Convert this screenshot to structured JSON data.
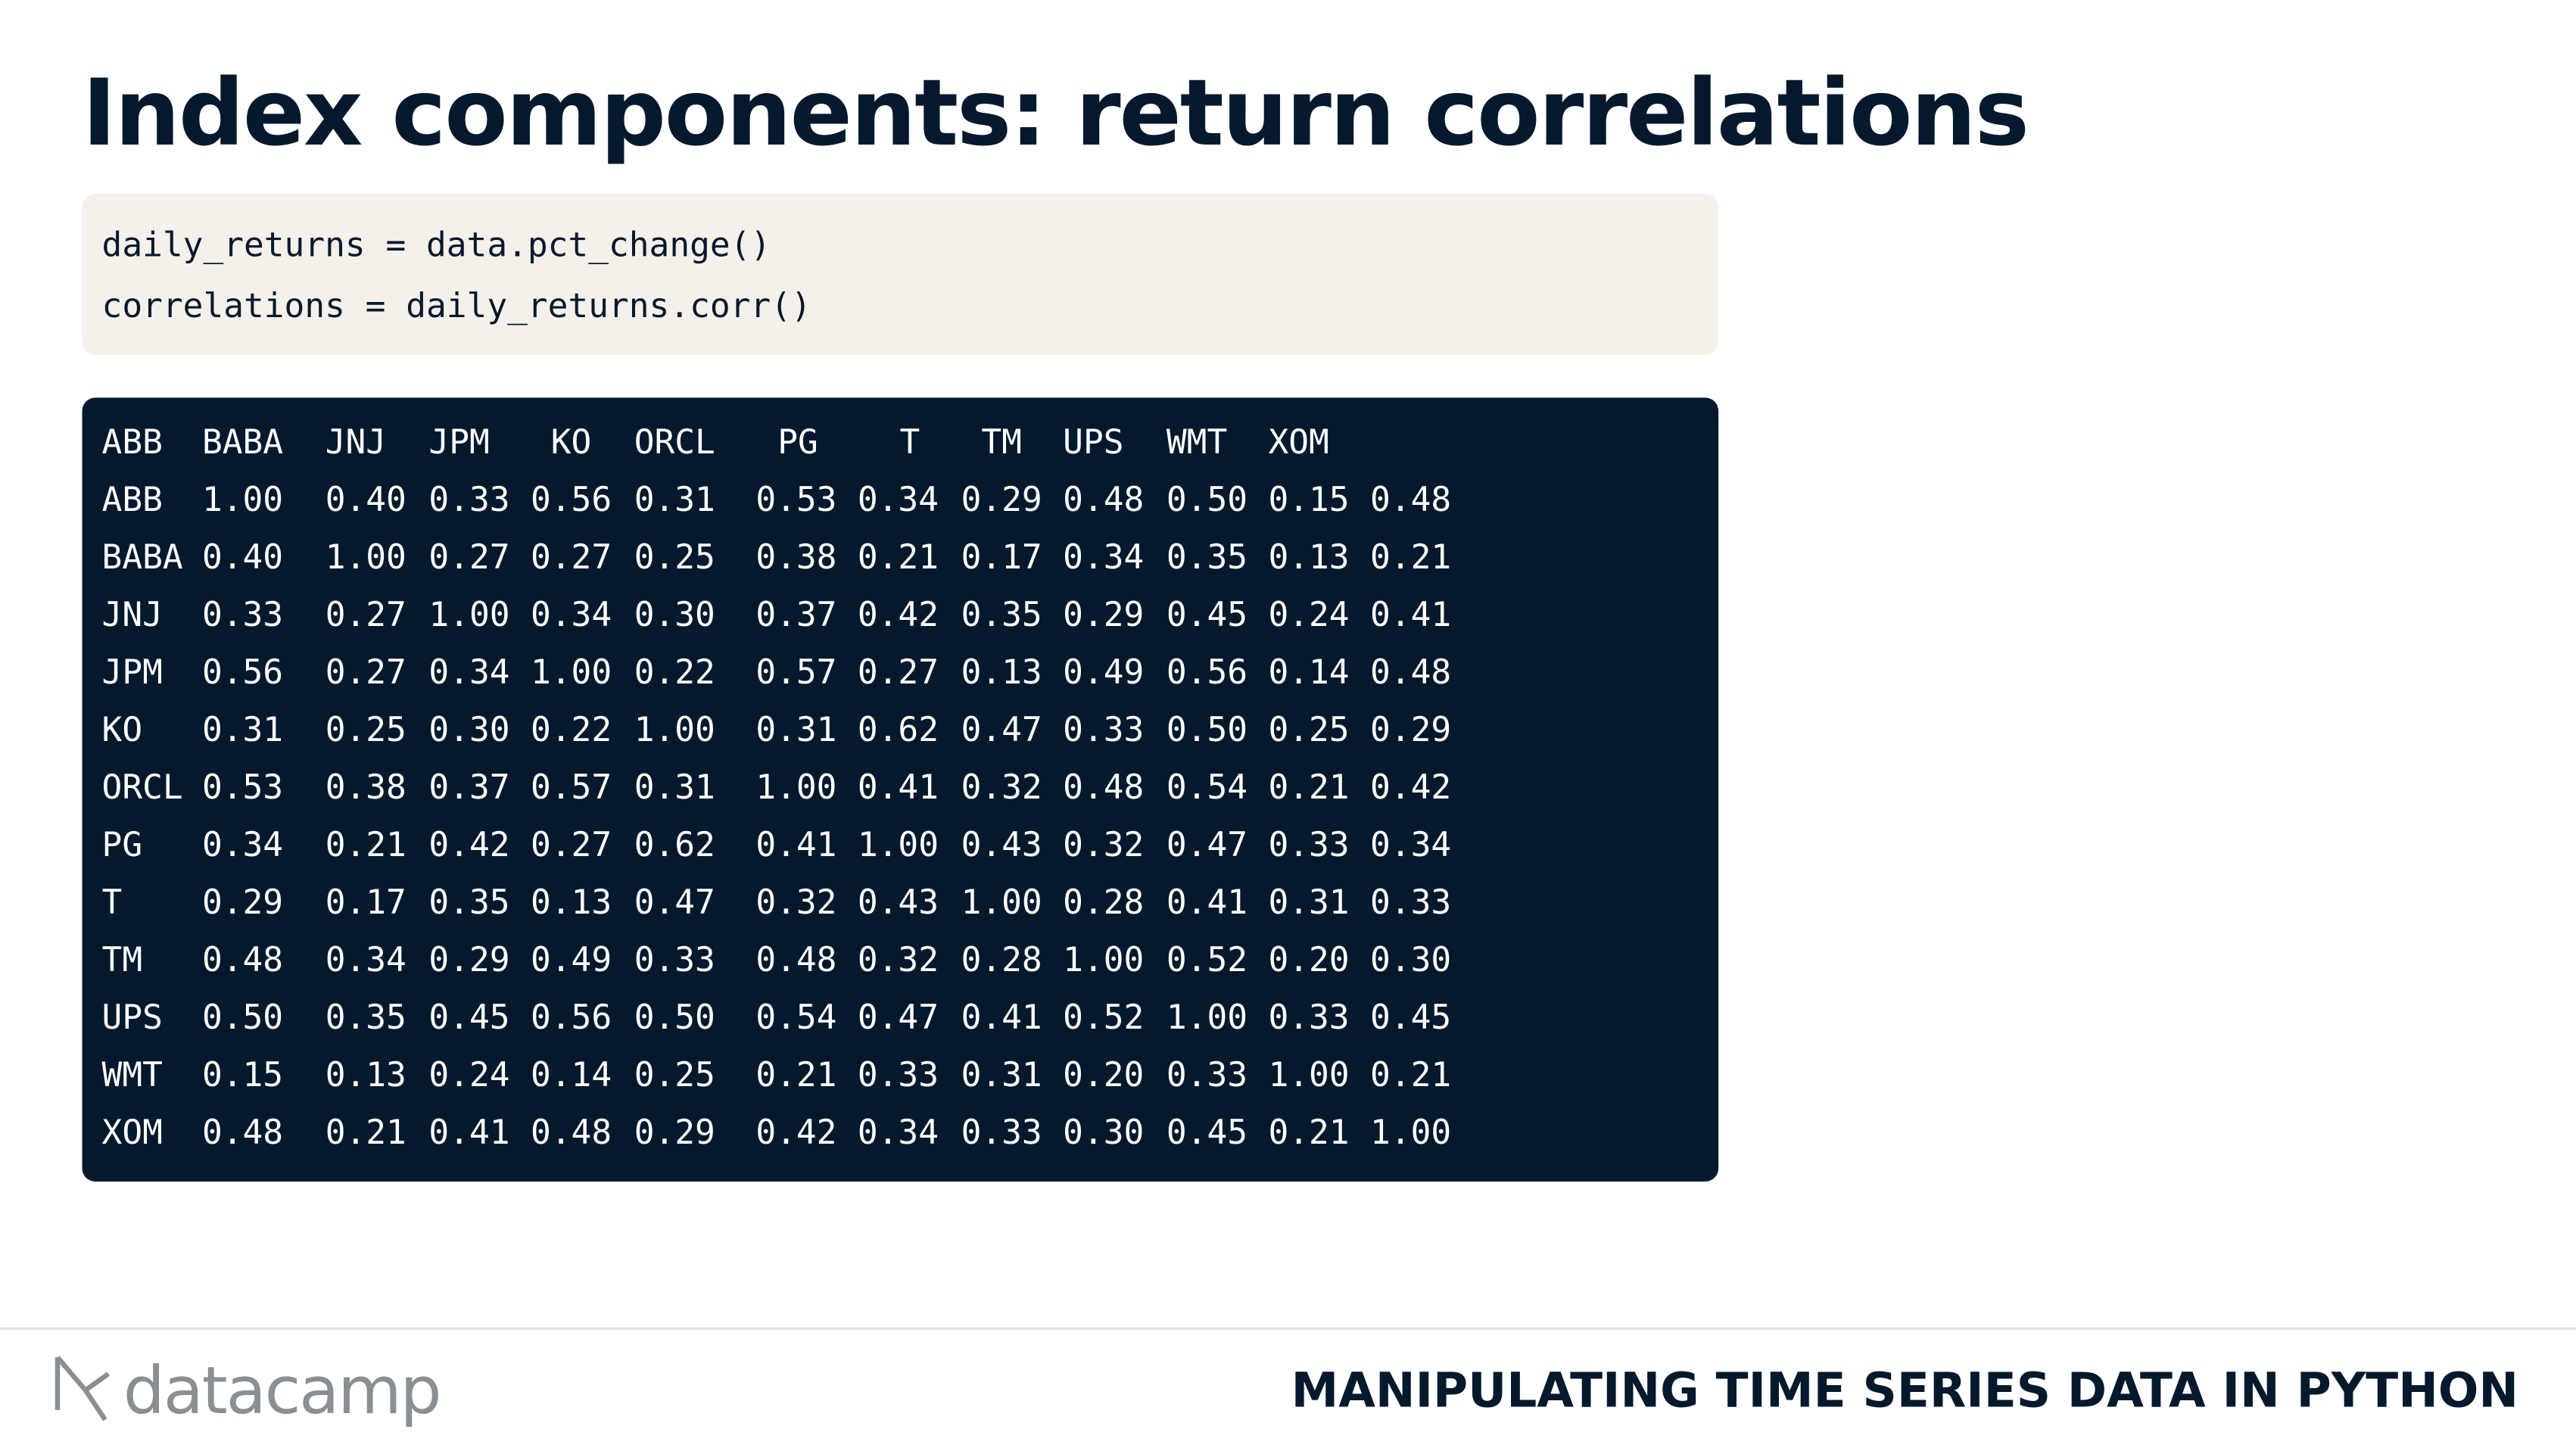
{
  "header": {
    "title": "Index components: return correlations"
  },
  "code": [
    "daily_returns = data.pct_change()",
    "correlations = daily_returns.corr()"
  ],
  "table": {
    "columns": [
      "ABB",
      "BABA",
      "JNJ",
      "JPM",
      "KO",
      "ORCL",
      "PG",
      "T",
      "TM",
      "UPS",
      "WMT",
      "XOM"
    ],
    "rows": [
      {
        "label": "ABB",
        "values": [
          "1.00",
          "0.40",
          "0.33",
          "0.56",
          "0.31",
          "0.53",
          "0.34",
          "0.29",
          "0.48",
          "0.50",
          "0.15",
          "0.48"
        ]
      },
      {
        "label": "BABA",
        "values": [
          "0.40",
          "1.00",
          "0.27",
          "0.27",
          "0.25",
          "0.38",
          "0.21",
          "0.17",
          "0.34",
          "0.35",
          "0.13",
          "0.21"
        ]
      },
      {
        "label": "JNJ",
        "values": [
          "0.33",
          "0.27",
          "1.00",
          "0.34",
          "0.30",
          "0.37",
          "0.42",
          "0.35",
          "0.29",
          "0.45",
          "0.24",
          "0.41"
        ]
      },
      {
        "label": "JPM",
        "values": [
          "0.56",
          "0.27",
          "0.34",
          "1.00",
          "0.22",
          "0.57",
          "0.27",
          "0.13",
          "0.49",
          "0.56",
          "0.14",
          "0.48"
        ]
      },
      {
        "label": "KO",
        "values": [
          "0.31",
          "0.25",
          "0.30",
          "0.22",
          "1.00",
          "0.31",
          "0.62",
          "0.47",
          "0.33",
          "0.50",
          "0.25",
          "0.29"
        ]
      },
      {
        "label": "ORCL",
        "values": [
          "0.53",
          "0.38",
          "0.37",
          "0.57",
          "0.31",
          "1.00",
          "0.41",
          "0.32",
          "0.48",
          "0.54",
          "0.21",
          "0.42"
        ]
      },
      {
        "label": "PG",
        "values": [
          "0.34",
          "0.21",
          "0.42",
          "0.27",
          "0.62",
          "0.41",
          "1.00",
          "0.43",
          "0.32",
          "0.47",
          "0.33",
          "0.34"
        ]
      },
      {
        "label": "T",
        "values": [
          "0.29",
          "0.17",
          "0.35",
          "0.13",
          "0.47",
          "0.32",
          "0.43",
          "1.00",
          "0.28",
          "0.41",
          "0.31",
          "0.33"
        ]
      },
      {
        "label": "TM",
        "values": [
          "0.48",
          "0.34",
          "0.29",
          "0.49",
          "0.33",
          "0.48",
          "0.32",
          "0.28",
          "1.00",
          "0.52",
          "0.20",
          "0.30"
        ]
      },
      {
        "label": "UPS",
        "values": [
          "0.50",
          "0.35",
          "0.45",
          "0.56",
          "0.50",
          "0.54",
          "0.47",
          "0.41",
          "0.52",
          "1.00",
          "0.33",
          "0.45"
        ]
      },
      {
        "label": "WMT",
        "values": [
          "0.15",
          "0.13",
          "0.24",
          "0.14",
          "0.25",
          "0.21",
          "0.33",
          "0.31",
          "0.20",
          "0.33",
          "1.00",
          "0.21"
        ]
      },
      {
        "label": "XOM",
        "values": [
          "0.48",
          "0.21",
          "0.41",
          "0.48",
          "0.29",
          "0.42",
          "0.34",
          "0.33",
          "0.30",
          "0.45",
          "0.21",
          "1.00"
        ]
      }
    ]
  },
  "footer": {
    "brand": "datacamp",
    "course": "MANIPULATING TIME SERIES DATA IN PYTHON"
  }
}
